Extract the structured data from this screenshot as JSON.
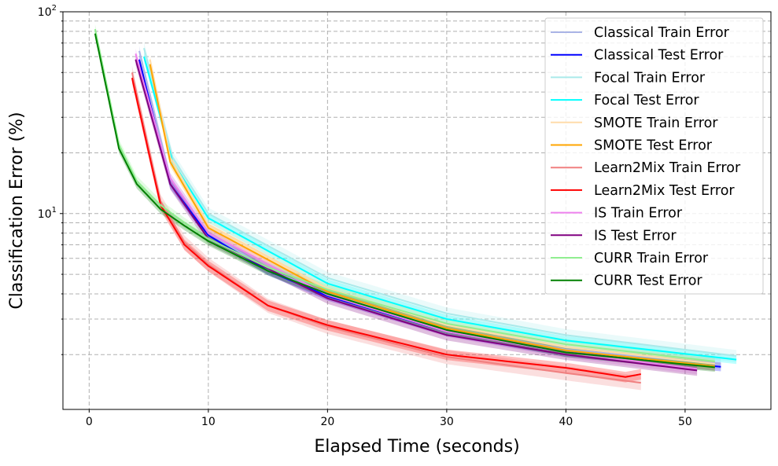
{
  "chart_data": {
    "type": "line",
    "xlabel": "Elapsed Time (seconds)",
    "ylabel": "Classification Error (%)",
    "xlim": [
      -2.2,
      57.2
    ],
    "ylim": [
      1.07,
      100
    ],
    "yscale": "log",
    "xticks": [
      0,
      10,
      20,
      30,
      40,
      50
    ],
    "xtick_labels": [
      "0",
      "10",
      "20",
      "30",
      "40",
      "50"
    ],
    "ytick_labels": [
      {
        "base": "10",
        "exp": "2",
        "value": 100
      },
      {
        "base": "10",
        "exp": "1",
        "value": 10
      }
    ],
    "grid": true,
    "legend_position": "top-right",
    "series": [
      {
        "name": "Classical Train Error",
        "color": "#aab4e6",
        "band": 0.06,
        "x": [
          4.2,
          6.8,
          10,
          15,
          20,
          30,
          40,
          53
        ],
        "y": [
          64,
          15,
          8.0,
          5.3,
          4.0,
          2.7,
          2.12,
          1.8
        ]
      },
      {
        "name": "Classical Test Error",
        "color": "#0000ff",
        "band": 0.05,
        "x": [
          4.2,
          6.8,
          10,
          15,
          20,
          30,
          40,
          53
        ],
        "y": [
          58,
          14,
          7.8,
          5.2,
          3.9,
          2.6,
          2.05,
          1.74
        ]
      },
      {
        "name": "Focal Train Error",
        "color": "#aaeaea",
        "band": 0.07,
        "x": [
          4.6,
          7,
          10,
          20,
          30,
          40,
          54.3
        ],
        "y": [
          66,
          19,
          10,
          4.8,
          3.2,
          2.5,
          1.97
        ]
      },
      {
        "name": "Focal Test Error",
        "color": "#00ffff",
        "band": 0.05,
        "x": [
          4.6,
          7,
          10,
          20,
          30,
          40,
          54.3
        ],
        "y": [
          60,
          18,
          9.5,
          4.5,
          3.0,
          2.35,
          1.89
        ]
      },
      {
        "name": "SMOTE Train Error",
        "color": "#ffdcaa",
        "band": 0.06,
        "x": [
          5.1,
          6.8,
          10,
          20,
          30,
          40,
          52.5
        ],
        "y": [
          58,
          19,
          8.8,
          4.25,
          2.8,
          2.18,
          1.8
        ]
      },
      {
        "name": "SMOTE Test Error",
        "color": "#ffa500",
        "band": 0.05,
        "x": [
          5.1,
          6.8,
          10,
          20,
          30,
          40,
          52.5
        ],
        "y": [
          55,
          18,
          8.5,
          4.1,
          2.7,
          2.1,
          1.75
        ]
      },
      {
        "name": "Learn2Mix Train Error",
        "color": "#f08080",
        "band": 0.08,
        "x": [
          3.6,
          5,
          6,
          8,
          10,
          15,
          20,
          30,
          40,
          46.3
        ],
        "y": [
          50,
          21,
          11.5,
          7.2,
          5.6,
          3.5,
          2.75,
          1.95,
          1.62,
          1.45
        ]
      },
      {
        "name": "Learn2Mix Test Error",
        "color": "#ff0000",
        "band": 0.06,
        "x": [
          3.6,
          5,
          6,
          8,
          10,
          15,
          20,
          30,
          40,
          45,
          46.3
        ],
        "y": [
          47,
          20,
          11,
          7,
          5.5,
          3.5,
          2.8,
          2.0,
          1.72,
          1.55,
          1.6
        ]
      },
      {
        "name": "IS Train Error",
        "color": "#ee82ee",
        "band": 0.06,
        "x": [
          3.9,
          6.8,
          10,
          20,
          30,
          40,
          51
        ],
        "y": [
          62,
          15,
          8.0,
          3.95,
          2.6,
          2.05,
          1.7
        ]
      },
      {
        "name": "IS Test Error",
        "color": "#800080",
        "band": 0.06,
        "x": [
          3.9,
          6.8,
          10,
          20,
          30,
          40,
          51
        ],
        "y": [
          58,
          14,
          7.5,
          3.8,
          2.5,
          2.0,
          1.67
        ]
      },
      {
        "name": "CURR Train Error",
        "color": "#90ee90",
        "band": 0.06,
        "x": [
          0.5,
          2.5,
          4,
          6,
          8,
          10,
          15,
          20,
          30,
          40,
          52.5
        ],
        "y": [
          82,
          22,
          14.5,
          11,
          9.0,
          7.5,
          5.4,
          4.2,
          2.85,
          2.25,
          1.85
        ]
      },
      {
        "name": "CURR Test Error",
        "color": "#008000",
        "band": 0.05,
        "x": [
          0.5,
          2.5,
          4,
          6,
          8,
          10,
          15,
          20,
          30,
          40,
          52.5
        ],
        "y": [
          78,
          21,
          14,
          10.5,
          8.7,
          7.3,
          5.2,
          4.0,
          2.65,
          2.05,
          1.73
        ]
      }
    ]
  }
}
